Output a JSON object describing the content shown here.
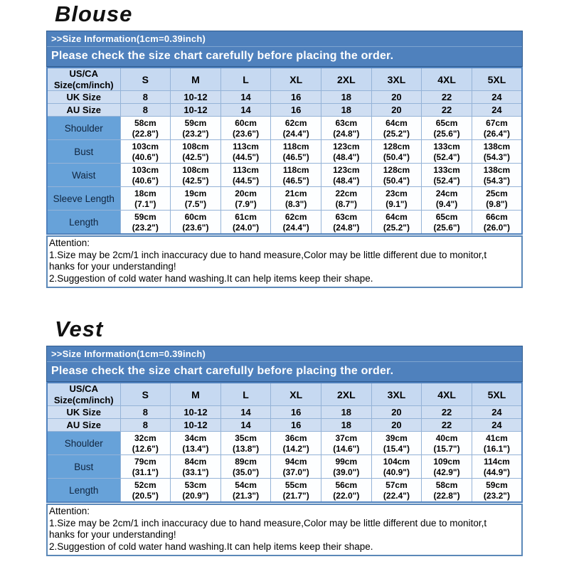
{
  "colors": {
    "banner_blue": "#4f81bd",
    "header_cell_blue": "#c6d9f1",
    "size_row_blue": "#cfdef2",
    "label_cell_blue": "#67a2d9",
    "grid_border_blue": "#95b3d7",
    "heavy_divider_navy": "#17375e",
    "banner_text": "#ffffff",
    "body_text": "#000000"
  },
  "sections": [
    {
      "title": "Blouse",
      "banner": {
        "line1": ">>Size Information(1cm=0.39inch)",
        "line2": "Please check the size chart carefully before placing the order."
      },
      "table": {
        "corner_header": "US/CA\nSize(cm/inch)",
        "columns": [
          "S",
          "M",
          "L",
          "XL",
          "2XL",
          "3XL",
          "4XL",
          "5XL"
        ],
        "size_rows": [
          {
            "label": "UK Size",
            "values": [
              "8",
              "10-12",
              "14",
              "16",
              "18",
              "20",
              "22",
              "24"
            ]
          },
          {
            "label": "AU Size",
            "values": [
              "8",
              "10-12",
              "14",
              "16",
              "18",
              "20",
              "22",
              "24"
            ]
          }
        ],
        "measure_rows": [
          {
            "label": "Shoulder",
            "values_cm": [
              "58cm",
              "59cm",
              "60cm",
              "62cm",
              "63cm",
              "64cm",
              "65cm",
              "67cm"
            ],
            "values_inch": [
              "(22.8\")",
              "(23.2\")",
              "(23.6\")",
              "(24.4\")",
              "(24.8\")",
              "(25.2\")",
              "(25.6\")",
              "(26.4\")"
            ]
          },
          {
            "label": "Bust",
            "values_cm": [
              "103cm",
              "108cm",
              "113cm",
              "118cm",
              "123cm",
              "128cm",
              "133cm",
              "138cm"
            ],
            "values_inch": [
              "(40.6\")",
              "(42.5\")",
              "(44.5\")",
              "(46.5\")",
              "(48.4\")",
              "(50.4\")",
              "(52.4\")",
              "(54.3\")"
            ]
          },
          {
            "label": "Waist",
            "values_cm": [
              "103cm",
              "108cm",
              "113cm",
              "118cm",
              "123cm",
              "128cm",
              "133cm",
              "138cm"
            ],
            "values_inch": [
              "(40.6\")",
              "(42.5\")",
              "(44.5\")",
              "(46.5\")",
              "(48.4\")",
              "(50.4\")",
              "(52.4\")",
              "(54.3\")"
            ]
          },
          {
            "label": "Sleeve Length",
            "values_cm": [
              "18cm",
              "19cm",
              "20cm",
              "21cm",
              "22cm",
              "23cm",
              "24cm",
              "25cm"
            ],
            "values_inch": [
              "(7.1\")",
              "(7.5\")",
              "(7.9\")",
              "(8.3\")",
              "(8.7\")",
              "(9.1\")",
              "(9.4\")",
              "(9.8\")"
            ]
          },
          {
            "label": "Length",
            "values_cm": [
              "59cm",
              "60cm",
              "61cm",
              "62cm",
              "63cm",
              "64cm",
              "65cm",
              "66cm"
            ],
            "values_inch": [
              "(23.2\")",
              "(23.6\")",
              "(24.0\")",
              "(24.4\")",
              "(24.8\")",
              "(25.2\")",
              "(25.6\")",
              "(26.0\")"
            ]
          }
        ]
      },
      "attention_lines": [
        "Attention:",
        "1.Size may be 2cm/1 inch inaccuracy due to hand measure,Color may be little different due to monitor,t",
        "hanks for your understanding!",
        "2.Suggestion of cold water hand washing.It can help items keep their shape."
      ]
    },
    {
      "title": "Vest",
      "banner": {
        "line1": ">>Size Information(1cm=0.39inch)",
        "line2": "Please check the size chart carefully before placing the order."
      },
      "table": {
        "corner_header": "US/CA\nSize(cm/inch)",
        "columns": [
          "S",
          "M",
          "L",
          "XL",
          "2XL",
          "3XL",
          "4XL",
          "5XL"
        ],
        "size_rows": [
          {
            "label": "UK Size",
            "values": [
              "8",
              "10-12",
              "14",
              "16",
              "18",
              "20",
              "22",
              "24"
            ]
          },
          {
            "label": "AU Size",
            "values": [
              "8",
              "10-12",
              "14",
              "16",
              "18",
              "20",
              "22",
              "24"
            ]
          }
        ],
        "measure_rows": [
          {
            "label": "Shoulder",
            "values_cm": [
              "32cm",
              "34cm",
              "35cm",
              "36cm",
              "37cm",
              "39cm",
              "40cm",
              "41cm"
            ],
            "values_inch": [
              "(12.6\")",
              "(13.4\")",
              "(13.8\")",
              "(14.2\")",
              "(14.6\")",
              "(15.4\")",
              "(15.7\")",
              "(16.1\")"
            ]
          },
          {
            "label": "Bust",
            "values_cm": [
              "79cm",
              "84cm",
              "89cm",
              "94cm",
              "99cm",
              "104cm",
              "109cm",
              "114cm"
            ],
            "values_inch": [
              "(31.1\")",
              "(33.1\")",
              "(35.0\")",
              "(37.0\")",
              "(39.0\")",
              "(40.9\")",
              "(42.9\")",
              "(44.9\")"
            ]
          },
          {
            "label": "Length",
            "values_cm": [
              "52cm",
              "53cm",
              "54cm",
              "55cm",
              "56cm",
              "57cm",
              "58cm",
              "59cm"
            ],
            "values_inch": [
              "(20.5\")",
              "(20.9\")",
              "(21.3\")",
              "(21.7\")",
              "(22.0\")",
              "(22.4\")",
              "(22.8\")",
              "(23.2\")"
            ]
          }
        ]
      },
      "attention_lines": [
        "Attention:",
        "1.Size may be 2cm/1 inch inaccuracy due to hand measure,Color may be little different due to monitor,t",
        "hanks for your understanding!",
        "2.Suggestion of cold water hand washing.It can help items keep their shape."
      ]
    }
  ]
}
